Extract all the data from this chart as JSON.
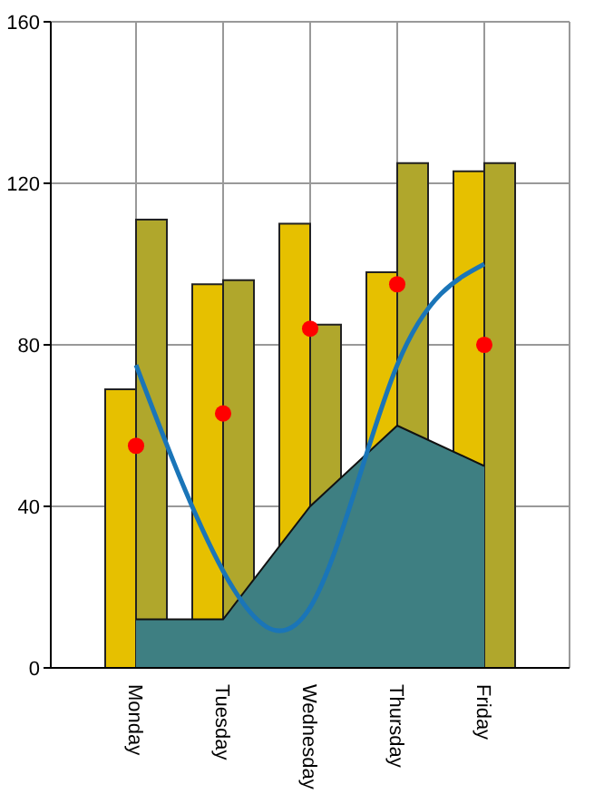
{
  "chart_data": {
    "type": "bar",
    "categories": [
      "Monday",
      "Tuesday",
      "Wednesday",
      "Thursday",
      "Friday"
    ],
    "series": [
      {
        "color": "#e6c000",
        "values": [
          69,
          95,
          110,
          98,
          123
        ]
      },
      {
        "color": "#b0a72c",
        "values": [
          111,
          96,
          85,
          125,
          125
        ]
      },
      {
        "type": "area",
        "color": "#3e7f82",
        "values": [
          12,
          12,
          40,
          60,
          50
        ]
      },
      {
        "type": "line",
        "color": "#1a75b8",
        "marker": "none",
        "values": [
          75,
          24,
          15,
          75,
          100
        ]
      },
      {
        "type": "scatter",
        "color": "#ff0000",
        "marker": "circle",
        "values": [
          55,
          63,
          84,
          95,
          80
        ]
      }
    ],
    "ylim": [
      0,
      160
    ],
    "yticks": [
      0,
      40,
      80,
      120,
      160
    ],
    "grid": true
  }
}
